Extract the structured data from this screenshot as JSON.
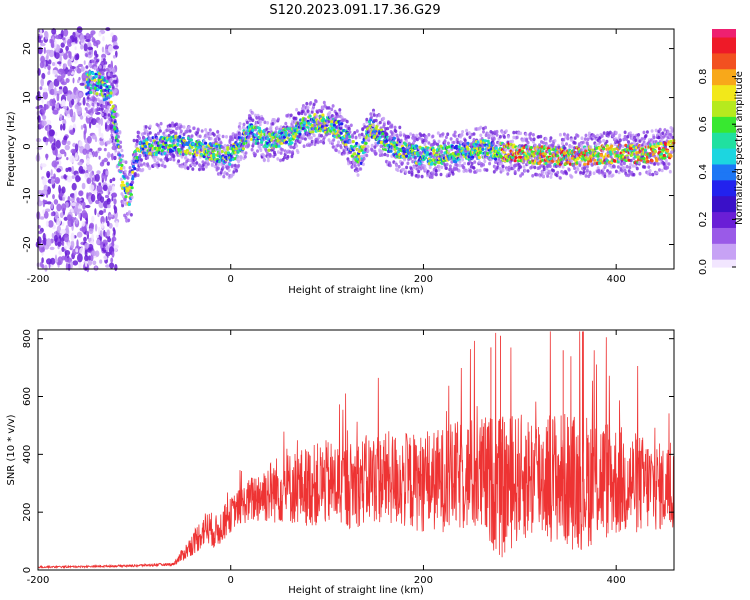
{
  "figure": {
    "title": "S120.2023.091.17.36.G29"
  },
  "colors": {
    "snr_line": "#ee3333",
    "axis": "#000000",
    "colormap": [
      "#f2e6ff",
      "#c7a2f5",
      "#9a5ae8",
      "#6a1ed6",
      "#3a10c8",
      "#2222ee",
      "#1d77f5",
      "#1cd6e0",
      "#20e0a0",
      "#38e830",
      "#b6ea1e",
      "#f2e81a",
      "#f8a81a",
      "#f25020",
      "#ee1a28",
      "#ee2070"
    ]
  },
  "chart_data": [
    {
      "type": "heatmap",
      "xlabel": "Height of straight line (km)",
      "ylabel": "Frequency (Hz)",
      "xlim": [
        -200,
        460
      ],
      "ylim": [
        -25,
        24
      ],
      "xticks": [
        -200,
        0,
        200,
        400
      ],
      "yticks": [
        -20,
        -10,
        0,
        10,
        20
      ],
      "colorbar": {
        "label": "Normalized spectral amplitude",
        "range": [
          0,
          1
        ],
        "ticks": [
          "0.0",
          "0.2",
          "0.4",
          "0.6",
          "0.8"
        ]
      },
      "noise_region_x": [
        -200,
        -118
      ],
      "ridge": {
        "x": [
          -150,
          -135,
          -125,
          -118,
          -112,
          -108,
          -104,
          -100,
          -95,
          -85,
          -60,
          -30,
          0,
          20,
          40,
          60,
          75,
          90,
          100,
          115,
          125,
          135,
          145,
          160,
          180,
          200,
          230,
          260,
          300,
          350,
          400,
          430,
          460
        ],
        "freq": [
          13,
          13,
          10,
          2,
          -7,
          -9.5,
          -9.5,
          -3,
          -1,
          0,
          0.5,
          -0.5,
          -2,
          3,
          1,
          2,
          4,
          5,
          4.5,
          3,
          0,
          -2,
          4,
          1,
          -1,
          -2,
          -1.5,
          -0.5,
          -1.5,
          -2,
          -1.5,
          -1.5,
          -0.5
        ]
      }
    },
    {
      "type": "line",
      "xlabel": "Height of straight line (km)",
      "ylabel": "SNR (10 * v/v)",
      "xlim": [
        -200,
        460
      ],
      "ylim": [
        0,
        830
      ],
      "xticks": [
        -200,
        0,
        200,
        400
      ],
      "yticks": [
        0,
        200,
        400,
        600,
        800
      ],
      "series": [
        {
          "x": [
            -200,
            -150,
            -100,
            -60,
            -55,
            -45,
            -35,
            -25,
            -15,
            -5,
            5,
            15,
            30,
            50,
            80,
            100,
            120,
            150,
            180,
            200,
            230,
            250,
            270,
            280,
            300,
            330,
            360,
            380,
            400,
            420,
            440,
            460
          ],
          "values": [
            10,
            12,
            15,
            20,
            35,
            70,
            110,
            150,
            130,
            170,
            210,
            230,
            260,
            280,
            290,
            300,
            290,
            320,
            310,
            300,
            320,
            330,
            310,
            280,
            320,
            330,
            300,
            320,
            310,
            300,
            290,
            280
          ],
          "spread": [
            3,
            3,
            4,
            5,
            15,
            30,
            50,
            60,
            60,
            60,
            60,
            70,
            100,
            120,
            140,
            150,
            150,
            160,
            170,
            170,
            190,
            200,
            230,
            250,
            220,
            230,
            240,
            230,
            200,
            180,
            160,
            140
          ],
          "peaks": [
            {
              "x": 280,
              "y": 810
            },
            {
              "x": 365,
              "y": 825
            },
            {
              "x": 270,
              "y": 770
            },
            {
              "x": 345,
              "y": 760
            }
          ]
        }
      ]
    }
  ]
}
